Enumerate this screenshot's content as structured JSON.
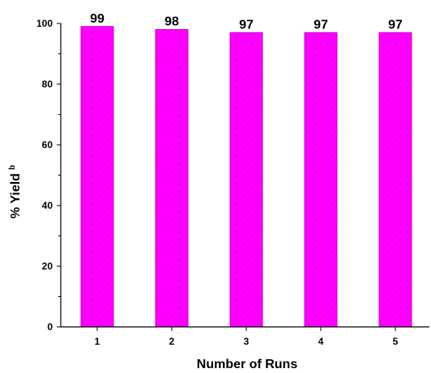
{
  "chart_data": {
    "type": "bar",
    "categories": [
      "1",
      "2",
      "3",
      "4",
      "5"
    ],
    "values": [
      99,
      98,
      97,
      97,
      97
    ],
    "data_labels": [
      "99",
      "98",
      "97",
      "97",
      "97"
    ],
    "xlabel": "Number of Runs",
    "ylabel": "% Yield",
    "ylabel_superscript": "b",
    "ylim": [
      0,
      100
    ],
    "yticks": [
      0,
      20,
      40,
      60,
      80,
      100
    ],
    "grid": false,
    "legend": "none",
    "bar_color": "#ff00ff",
    "bar_hatch_color": "#e600e6",
    "bar_edge_color": "#cc00cc"
  }
}
